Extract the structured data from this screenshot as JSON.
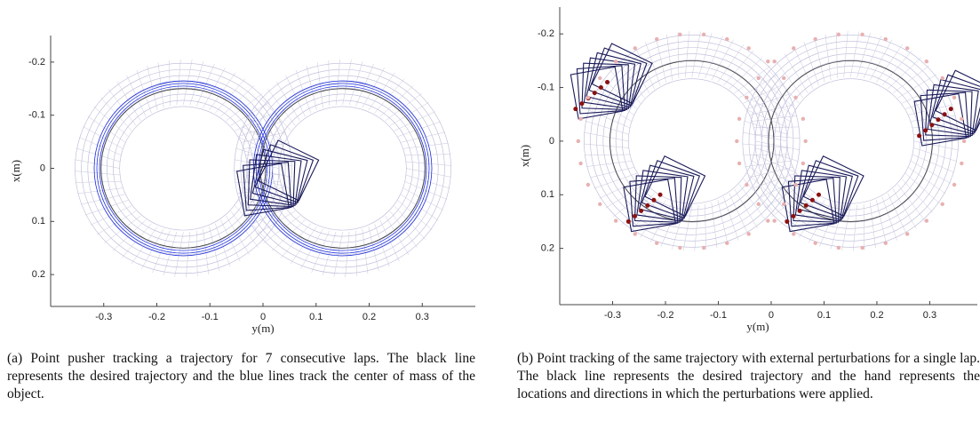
{
  "figures": [
    {
      "xlabel": "y(m)",
      "ylabel": "x(m)",
      "xlim": [
        -0.4,
        0.4
      ],
      "ylim": [
        -0.25,
        0.26
      ],
      "xticks": [
        -0.3,
        -0.2,
        -0.1,
        0,
        0.1,
        0.2,
        0.3
      ],
      "yticks": [
        -0.2,
        -0.1,
        0,
        0.1,
        0.2
      ],
      "caption": "(a) Point pusher tracking a trajectory for 7 consecutive laps. The black line represents the desired trajectory and the blue lines track the center of mass of the object."
    },
    {
      "xlabel": "y(m)",
      "ylabel": "x(m)",
      "xlim": [
        -0.4,
        0.39
      ],
      "ylim": [
        -0.25,
        0.305
      ],
      "xticks": [
        -0.3,
        -0.2,
        -0.1,
        0,
        0.1,
        0.2,
        0.3
      ],
      "yticks": [
        -0.2,
        -0.1,
        0,
        0.1,
        0.2
      ],
      "caption": "(b) Point tracking of the same trajectory with external perturbations for a single lap. The black line represents the desired trajectory and the hand represents the locations and directions in which the perturbations were applied."
    }
  ]
}
